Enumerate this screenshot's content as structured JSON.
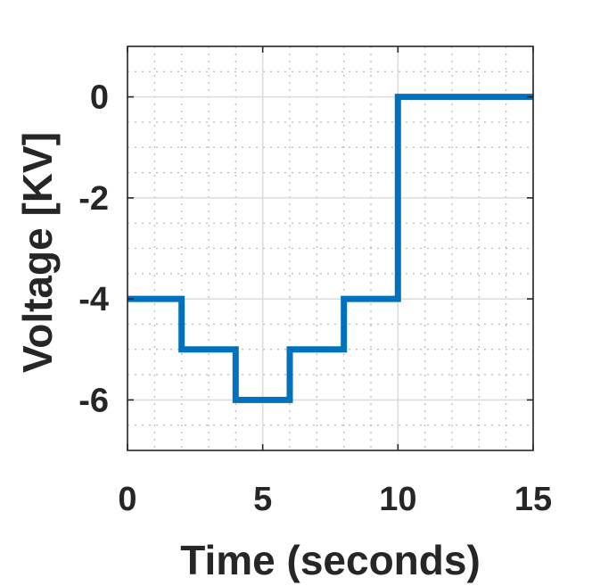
{
  "chart_data": {
    "type": "line",
    "line_style": "step",
    "title": "",
    "xlabel": "Time (seconds)",
    "ylabel": "Voltage [KV]",
    "xlim": [
      0,
      15
    ],
    "ylim": [
      -7,
      1
    ],
    "x_ticks": [
      0,
      5,
      10,
      15
    ],
    "x_tick_labels": [
      "0",
      "5",
      "10",
      "15"
    ],
    "y_ticks": [
      0,
      -2,
      -4,
      -6
    ],
    "y_tick_labels": [
      "0",
      "-2",
      "-4",
      "-6"
    ],
    "grid": true,
    "minor_grid": true,
    "legend": "none",
    "series": [
      {
        "color": "#0072BD",
        "x": [
          0,
          2,
          2,
          4,
          4,
          6,
          6,
          8,
          8,
          10,
          10,
          15
        ],
        "y": [
          -4,
          -4,
          -5,
          -5,
          -6,
          -6,
          -5,
          -5,
          -4,
          -4,
          0,
          0
        ]
      }
    ]
  }
}
